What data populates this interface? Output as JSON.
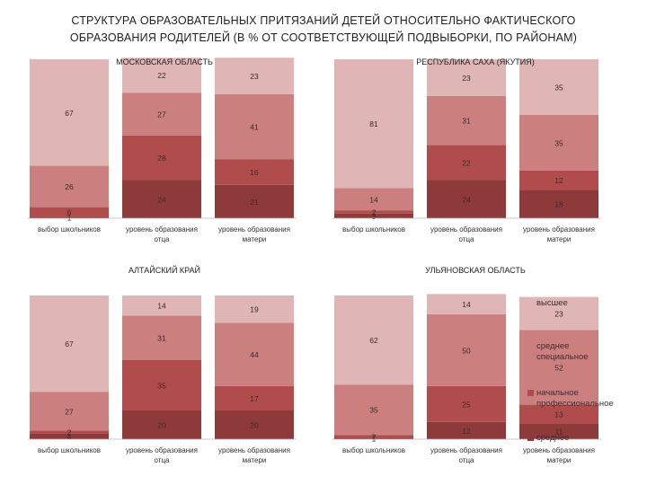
{
  "title_lines": [
    "СТРУКТУРА ОБРАЗОВАТЕЛЬНЫХ ПРИТЯЗАНИЙ ДЕТЕЙ ОТНОСИТЕЛЬНО ФАКТИЧЕСКОГО",
    "ОБРАЗОВАНИЯ РОДИТЕЛЕЙ (В % ОТ СООТВЕТСТВУЮЩЕЙ ПОДВЫБОРКИ, ПО РАЙОНАМ)"
  ],
  "colors": {
    "высшее": "#dfb5b5",
    "среднее специальное": "#cb7f7f",
    "начальное профессиональное": "#b04c4c",
    "среднее": "#8f3a3a"
  },
  "chart_data": [
    {
      "type": "bar",
      "stacked": true,
      "title": "МОСКОВСКАЯ ОБЛАСТЬ",
      "categories": [
        "выбор школьников",
        "уровень образования отца",
        "уровень образования матери"
      ],
      "series": [
        {
          "name": "среднее",
          "values": [
            1,
            24,
            21
          ]
        },
        {
          "name": "начальное профессиональное",
          "values": [
            6,
            28,
            16
          ]
        },
        {
          "name": "среднее специальное",
          "values": [
            26,
            27,
            41
          ]
        },
        {
          "name": "высшее",
          "values": [
            67,
            22,
            23
          ]
        }
      ],
      "ylim": [
        0,
        100
      ]
    },
    {
      "type": "bar",
      "stacked": true,
      "title": "РЕСПУБЛИКА САХА (ЯКУТИЯ)",
      "categories": [
        "выбор школьников",
        "уровень образования отца",
        "уровень образования матери"
      ],
      "series": [
        {
          "name": "среднее",
          "values": [
            3,
            24,
            18
          ]
        },
        {
          "name": "начальное профессиональное",
          "values": [
            2,
            22,
            12
          ]
        },
        {
          "name": "среднее специальное",
          "values": [
            14,
            31,
            35
          ]
        },
        {
          "name": "высшее",
          "values": [
            81,
            23,
            35
          ]
        }
      ],
      "ylim": [
        0,
        100
      ]
    },
    {
      "type": "bar",
      "stacked": true,
      "title": "АЛТАЙСКИЙ КРАЙ",
      "categories": [
        "выбор школьников",
        "уровень образования отца",
        "уровень образования матери"
      ],
      "series": [
        {
          "name": "среднее",
          "values": [
            4,
            20,
            20
          ]
        },
        {
          "name": "начальное профессиональное",
          "values": [
            2,
            35,
            17
          ]
        },
        {
          "name": "среднее специальное",
          "values": [
            27,
            31,
            44
          ]
        },
        {
          "name": "высшее",
          "values": [
            67,
            14,
            19
          ]
        }
      ],
      "ylim": [
        0,
        100
      ]
    },
    {
      "type": "bar",
      "stacked": true,
      "title": "УЛЬЯНОВСКАЯ ОБЛАСТЬ",
      "categories": [
        "выбор школьников",
        "уровень образования отца",
        "уровень образования матери"
      ],
      "series": [
        {
          "name": "среднее",
          "values": [
            1,
            12,
            11
          ]
        },
        {
          "name": "начальное профессиональное",
          "values": [
            2,
            25,
            13
          ]
        },
        {
          "name": "среднее специальное",
          "values": [
            35,
            50,
            52
          ]
        },
        {
          "name": "высшее",
          "values": [
            62,
            14,
            23
          ]
        }
      ],
      "ylim": [
        0,
        100
      ]
    }
  ],
  "legend": [
    "высшее",
    "среднее специальное",
    "начальное профессиональное",
    "среднее"
  ],
  "legend_lines": [
    [
      "высшее"
    ],
    [
      "среднее",
      "специальное"
    ],
    [
      "начальное",
      "профессиональное"
    ],
    [
      "среднее"
    ]
  ],
  "category_label_lines": [
    [
      "выбор школьников"
    ],
    [
      "уровень образования",
      "отца"
    ],
    [
      "уровень образования",
      "матери"
    ]
  ]
}
